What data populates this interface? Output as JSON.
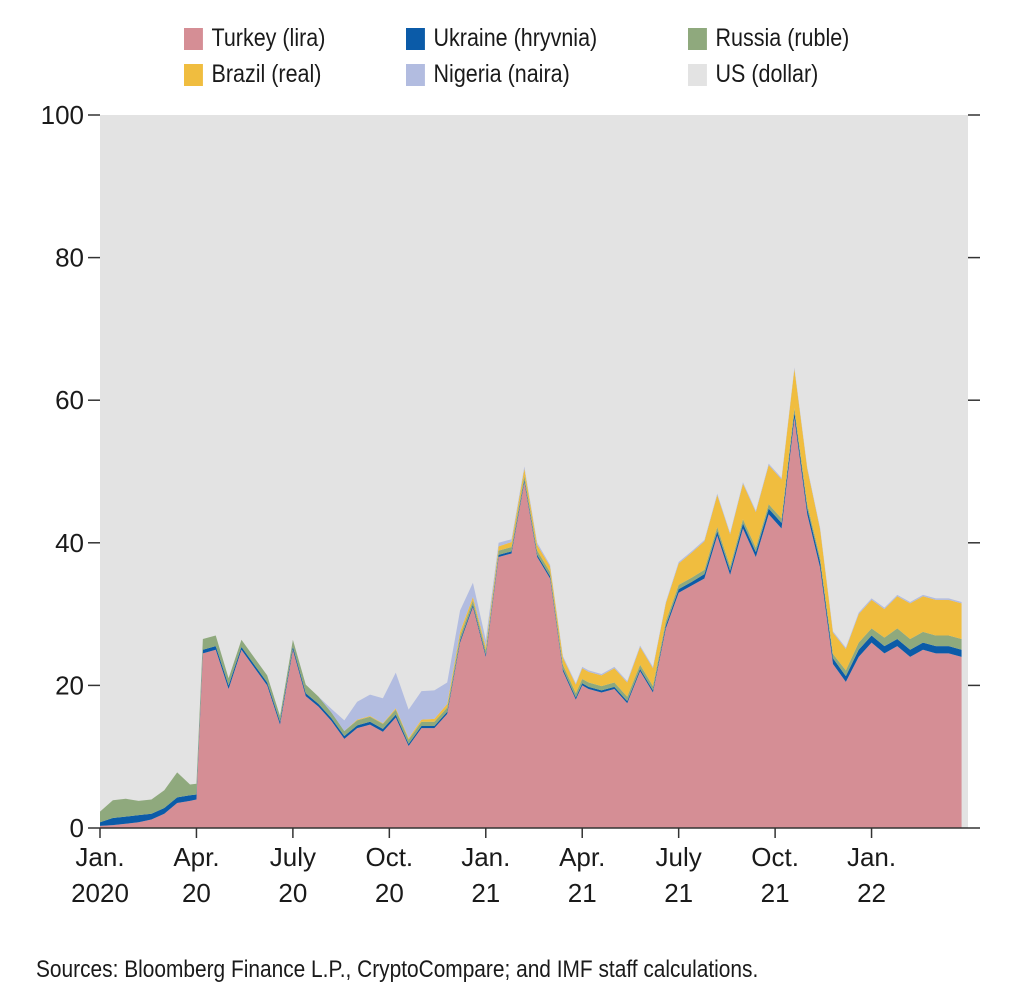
{
  "legend": [
    {
      "label": "Turkey (lira)",
      "color": "#d58e95"
    },
    {
      "label": "Ukraine (hryvnia)",
      "color": "#0b5ba8"
    },
    {
      "label": "Russia (ruble)",
      "color": "#8fa97d"
    },
    {
      "label": "Brazil (real)",
      "color": "#f0bd3f"
    },
    {
      "label": "Nigeria (naira)",
      "color": "#b2bce0"
    },
    {
      "label": "US (dollar)",
      "color": "#e3e3e3"
    }
  ],
  "source_note": "Sources: Bloomberg Finance L.P., CryptoCompare; and IMF staff calculations.",
  "chart_data": {
    "type": "area",
    "stacked": true,
    "ylim": [
      0,
      100
    ],
    "yticks": [
      0,
      20,
      40,
      60,
      80,
      100
    ],
    "xlim": [
      0,
      27
    ],
    "xticks": [
      {
        "x": 0,
        "line1": "Jan.",
        "line2": "2020"
      },
      {
        "x": 3,
        "line1": "Apr.",
        "line2": "20"
      },
      {
        "x": 6,
        "line1": "July",
        "line2": "20"
      },
      {
        "x": 9,
        "line1": "Oct.",
        "line2": "20"
      },
      {
        "x": 12,
        "line1": "Jan.",
        "line2": "21"
      },
      {
        "x": 15,
        "line1": "Apr.",
        "line2": "21"
      },
      {
        "x": 18,
        "line1": "July",
        "line2": "21"
      },
      {
        "x": 21,
        "line1": "Oct.",
        "line2": "21"
      },
      {
        "x": 24,
        "line1": "Jan.",
        "line2": "22"
      }
    ],
    "x": [
      0,
      0.4,
      0.8,
      1.2,
      1.6,
      2.0,
      2.4,
      2.8,
      3.0,
      3.2,
      3.6,
      4.0,
      4.4,
      4.8,
      5.2,
      5.6,
      6.0,
      6.4,
      6.8,
      7.2,
      7.6,
      8.0,
      8.4,
      8.8,
      9.2,
      9.6,
      10.0,
      10.4,
      10.8,
      11.2,
      11.6,
      12.0,
      12.4,
      12.8,
      13.2,
      13.6,
      14.0,
      14.4,
      14.8,
      15.0,
      15.2,
      15.6,
      16.0,
      16.4,
      16.8,
      17.2,
      17.6,
      18.0,
      18.4,
      18.8,
      19.2,
      19.6,
      20.0,
      20.4,
      20.8,
      21.2,
      21.6,
      22.0,
      22.4,
      22.8,
      23.2,
      23.6,
      24.0,
      24.4,
      24.8,
      25.2,
      25.6,
      26.0,
      26.4,
      26.8
    ],
    "series": [
      {
        "name": "Turkey (lira)",
        "color": "#d58e95",
        "values": [
          0.3,
          0.4,
          0.6,
          0.8,
          1.2,
          2.0,
          3.5,
          3.8,
          4.0,
          24.5,
          25.0,
          19.5,
          25.0,
          22.5,
          20.0,
          14.5,
          25.0,
          18.5,
          17.0,
          15.0,
          12.5,
          14.0,
          14.5,
          13.5,
          15.5,
          11.5,
          14.0,
          14.0,
          16.0,
          26.0,
          31.0,
          24.0,
          38.0,
          38.5,
          48.5,
          38.0,
          35.0,
          22.0,
          18.0,
          20.0,
          19.5,
          19.0,
          19.5,
          17.5,
          22.0,
          19.0,
          28.0,
          33.0,
          34.0,
          35.0,
          41.0,
          35.5,
          42.0,
          38.0,
          44.0,
          42.0,
          57.5,
          44.0,
          36.5,
          23.0,
          20.5,
          24.0,
          26.0,
          24.5,
          25.5,
          24.0,
          25.0,
          24.5,
          24.5,
          24.0
        ]
      },
      {
        "name": "Ukraine (hryvnia)",
        "color": "#0b5ba8",
        "values": [
          0.5,
          1.0,
          1.0,
          1.0,
          0.8,
          0.8,
          0.8,
          0.8,
          0.7,
          0.5,
          0.5,
          0.5,
          0.4,
          0.4,
          0.4,
          0.4,
          0.4,
          0.4,
          0.4,
          0.4,
          0.4,
          0.4,
          0.4,
          0.4,
          0.4,
          0.3,
          0.3,
          0.3,
          0.3,
          0.3,
          0.3,
          0.3,
          0.3,
          0.3,
          0.3,
          0.3,
          0.3,
          0.3,
          0.3,
          0.3,
          0.3,
          0.3,
          0.3,
          0.3,
          0.3,
          0.3,
          0.4,
          0.5,
          0.5,
          0.6,
          0.6,
          0.6,
          0.7,
          0.7,
          0.8,
          0.8,
          0.8,
          0.8,
          0.8,
          0.8,
          0.8,
          1.0,
          1.0,
          1.0,
          1.0,
          1.0,
          1.0,
          1.0,
          1.0,
          1.0
        ]
      },
      {
        "name": "Russia (ruble)",
        "color": "#8fa97d",
        "values": [
          1.5,
          2.5,
          2.5,
          2.0,
          2.0,
          2.5,
          3.5,
          1.5,
          1.5,
          1.5,
          1.5,
          1.0,
          1.0,
          1.0,
          1.0,
          0.8,
          1.0,
          1.2,
          1.0,
          0.8,
          0.7,
          0.7,
          0.7,
          0.7,
          0.7,
          0.6,
          0.6,
          0.6,
          0.6,
          0.6,
          0.6,
          0.6,
          0.6,
          0.6,
          0.6,
          0.6,
          0.6,
          0.6,
          0.6,
          0.6,
          0.6,
          0.6,
          0.6,
          0.6,
          0.6,
          0.6,
          0.6,
          0.6,
          0.6,
          0.6,
          0.6,
          0.6,
          0.6,
          0.6,
          0.6,
          0.6,
          0.6,
          0.6,
          0.6,
          0.6,
          0.8,
          1.0,
          1.0,
          1.2,
          1.5,
          1.5,
          1.5,
          1.5,
          1.5,
          1.5
        ]
      },
      {
        "name": "Brazil (real)",
        "color": "#f0bd3f",
        "values": [
          0.0,
          0.0,
          0.0,
          0.0,
          0.0,
          0.0,
          0.0,
          0.0,
          0.0,
          0.0,
          0.0,
          0.0,
          0.0,
          0.0,
          0.0,
          0.0,
          0.0,
          0.0,
          0.0,
          0.0,
          0.0,
          0.1,
          0.1,
          0.1,
          0.2,
          0.2,
          0.3,
          0.4,
          0.5,
          0.6,
          0.5,
          0.5,
          0.6,
          0.7,
          1.0,
          0.8,
          0.8,
          1.0,
          1.2,
          1.5,
          1.5,
          1.5,
          2.0,
          2.0,
          2.5,
          2.5,
          2.5,
          3.0,
          3.5,
          4.0,
          4.5,
          4.5,
          5.0,
          5.0,
          5.5,
          5.5,
          5.5,
          5.0,
          4.0,
          3.0,
          3.0,
          4.0,
          4.0,
          4.0,
          4.5,
          5.0,
          5.0,
          5.0,
          5.0,
          5.0
        ]
      },
      {
        "name": "Nigeria (naira)",
        "color": "#b2bce0",
        "values": [
          0.0,
          0.0,
          0.0,
          0.0,
          0.0,
          0.0,
          0.0,
          0.0,
          0.0,
          0.0,
          0.0,
          0.0,
          0.0,
          0.0,
          0.0,
          0.0,
          0.0,
          0.0,
          0.0,
          0.5,
          1.5,
          2.5,
          3.0,
          3.5,
          5.0,
          4.0,
          4.0,
          4.0,
          3.0,
          3.0,
          2.0,
          1.0,
          0.5,
          0.4,
          0.3,
          0.3,
          0.2,
          0.2,
          0.2,
          0.2,
          0.2,
          0.2,
          0.2,
          0.2,
          0.2,
          0.2,
          0.2,
          0.2,
          0.2,
          0.2,
          0.2,
          0.2,
          0.2,
          0.2,
          0.2,
          0.2,
          0.2,
          0.2,
          0.2,
          0.2,
          0.2,
          0.2,
          0.2,
          0.2,
          0.2,
          0.2,
          0.2,
          0.2,
          0.2,
          0.2
        ]
      }
    ],
    "remainder": {
      "name": "US (dollar)",
      "color": "#e3e3e3"
    }
  }
}
